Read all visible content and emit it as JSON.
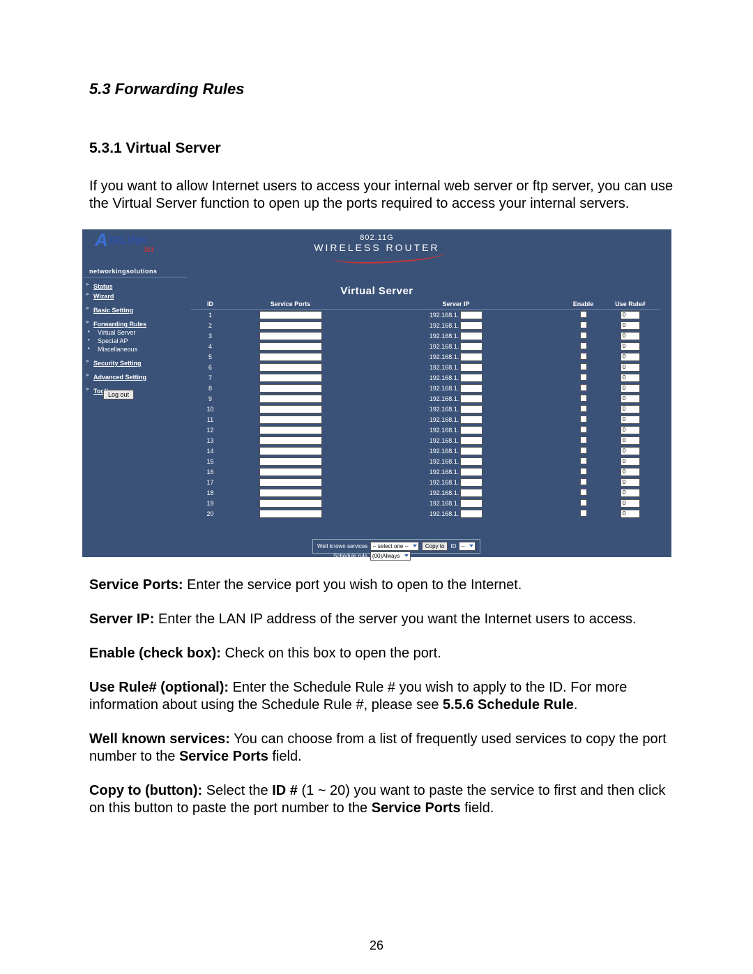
{
  "doc": {
    "section_title": "5.3 Forwarding Rules",
    "sub_title": "5.3.1 Virtual Server",
    "intro": "If you want to allow Internet users to access your internal web server or ftp server, you can use the Virtual Server function to open up the ports required to access your internal servers.",
    "p_service_ports_b": "Service Ports:",
    "p_service_ports": " Enter the service port you wish to open to the Internet.",
    "p_server_ip_b": "Server IP:",
    "p_server_ip": " Enter the LAN IP address of the server you want the Internet users to access.",
    "p_enable_b": "Enable (check box):",
    "p_enable": " Check on this box to open the port.",
    "p_use_rule_b": "Use Rule# (optional):",
    "p_use_rule_1": " Enter the Schedule Rule # you wish to apply to the ID. For more information about using the Schedule Rule #, please see ",
    "p_use_rule_ref": "5.5.6 Schedule Rule",
    "p_use_rule_2": ".",
    "p_wks_b": "Well known services:",
    "p_wks_1": " You can choose from a list of frequently used services to copy the port number to the ",
    "p_wks_field": "Service Ports",
    "p_wks_2": " field.",
    "p_copy_b": "Copy to (button):",
    "p_copy_1": " Select the ",
    "p_copy_id": "ID #",
    "p_copy_2": " (1 ~ 20) you want to paste the service to first and then click on this button to paste the port number to the ",
    "p_copy_field": "Service Ports",
    "p_copy_3": " field.",
    "page_num": "26"
  },
  "ui": {
    "brand_letter": "A",
    "brand_rest": "IRLINK",
    "brand_sub": "101",
    "tagline": "networkingsolutions",
    "rt_line1": "802.11G",
    "rt_line2": "WIRELESS  ROUTER",
    "page_title": "Virtual Server",
    "nav": {
      "status": "Status",
      "wizard": "Wizard",
      "basic": "Basic Setting",
      "fwd": "Forwarding Rules",
      "vs": "Virtual Server",
      "sap": "Special AP",
      "misc": "Miscellaneous",
      "sec": "Security Setting",
      "adv": "Advanced Setting",
      "tool": "Toolbox"
    },
    "logout": "Log out",
    "th": {
      "id": "ID",
      "sp": "Service Ports",
      "ip": "Server IP",
      "en": "Enable",
      "ur": "Use Rule#"
    },
    "ip_prefix": "192.168.1.",
    "use_rule_default": "0",
    "rows": [
      1,
      2,
      3,
      4,
      5,
      6,
      7,
      8,
      9,
      10,
      11,
      12,
      13,
      14,
      15,
      16,
      17,
      18,
      19,
      20
    ],
    "wks_label": "Well known services",
    "wks_select": "-- select one --",
    "copy_to": "Copy to",
    "id_label": "ID",
    "id_select": "--",
    "sched_label": "Schedule rule",
    "sched_select": "(00)Always"
  },
  "colors": {
    "panel_bg": "#3b5278",
    "text_white": "#ffffff",
    "accent_red": "#c33"
  }
}
